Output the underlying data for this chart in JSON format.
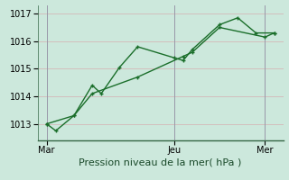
{
  "bg_color": "#cce8dc",
  "plot_bg_color": "#cce8dc",
  "grid_color": "#c8d8cc",
  "line_color": "#1a6e2a",
  "marker_color": "#1a6e2a",
  "xlabel": "Pression niveau de la mer( hPa )",
  "ylim": [
    1012.4,
    1017.3
  ],
  "yticks": [
    1013,
    1014,
    1015,
    1016,
    1017
  ],
  "x_tick_labels": [
    "Mar",
    "Jeu",
    "Mer"
  ],
  "x_tick_positions": [
    0,
    7,
    12
  ],
  "vline_positions": [
    0,
    7,
    12
  ],
  "line1_x": [
    0,
    0.5,
    1.5,
    2.5,
    3.0,
    4.0,
    5.0,
    7.0,
    7.5,
    8.0,
    9.5,
    10.5,
    11.5,
    12.5
  ],
  "line1_y": [
    1013.0,
    1012.75,
    1013.3,
    1014.4,
    1014.1,
    1015.05,
    1015.8,
    1015.4,
    1015.3,
    1015.7,
    1016.6,
    1016.85,
    1016.3,
    1016.3
  ],
  "line2_x": [
    0,
    1.5,
    2.5,
    5.0,
    7.5,
    8.0,
    9.5,
    12.0,
    12.5
  ],
  "line2_y": [
    1013.0,
    1013.3,
    1014.1,
    1014.7,
    1015.45,
    1015.6,
    1016.5,
    1016.15,
    1016.3
  ],
  "xlabel_fontsize": 8,
  "tick_fontsize": 7,
  "linewidth": 1.0,
  "markersize": 3.5
}
